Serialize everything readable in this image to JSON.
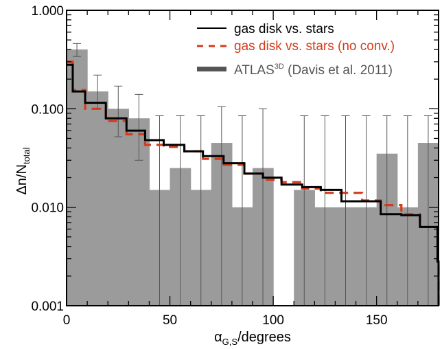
{
  "chart_data": {
    "type": "histogram",
    "xlabel": {
      "main": "α",
      "sub": "G,S",
      "rest": "/degrees"
    },
    "ylabel": {
      "main": "Δn/N",
      "sub": "total"
    },
    "xlim": [
      0,
      180
    ],
    "ylim": [
      0.001,
      1.0
    ],
    "yscale": "log",
    "grid": false,
    "legend_position": "top-right",
    "x_ticks": [
      {
        "value": 0,
        "label": "0"
      },
      {
        "value": 50,
        "label": "50"
      },
      {
        "value": 100,
        "label": "100"
      },
      {
        "value": 150,
        "label": "150"
      }
    ],
    "y_ticks": [
      {
        "value": 0.001,
        "label": "0.001"
      },
      {
        "value": 0.01,
        "label": "0.010"
      },
      {
        "value": 0.1,
        "label": "0.100"
      },
      {
        "value": 1.0,
        "label": "1.000"
      }
    ],
    "bin_edges": [
      0,
      10,
      20,
      30,
      40,
      50,
      60,
      70,
      80,
      90,
      100,
      110,
      120,
      130,
      140,
      150,
      160,
      170,
      180
    ],
    "series": [
      {
        "name": "gas disk vs. stars",
        "style": "step",
        "color": "#000000",
        "dash": "solid",
        "bin_edges": [
          0,
          3,
          9,
          19,
          29,
          38,
          47,
          57,
          66,
          76,
          86,
          95,
          104,
          114,
          123,
          133,
          143,
          152,
          162,
          171,
          179.5,
          180
        ],
        "values": [
          0.28,
          0.15,
          0.115,
          0.08,
          0.06,
          0.048,
          0.043,
          0.037,
          0.033,
          0.028,
          0.022,
          0.02,
          0.017,
          0.016,
          0.015,
          0.0115,
          0.0115,
          0.0085,
          0.0083,
          0.0063,
          0.0028
        ]
      },
      {
        "name": "gas disk vs. stars (no conv.)",
        "style": "step",
        "color": "#d43b1a",
        "dash": "dashed",
        "bin_edges": [
          0,
          3,
          9,
          19,
          29,
          38,
          47,
          57,
          66,
          76,
          86,
          95,
          104,
          114,
          123,
          133,
          143,
          152,
          162,
          171,
          179.5,
          180
        ],
        "values": [
          0.3,
          0.155,
          0.1,
          0.075,
          0.055,
          0.043,
          0.041,
          0.037,
          0.031,
          0.027,
          0.022,
          0.019,
          0.018,
          0.0155,
          0.014,
          0.014,
          0.0117,
          0.0105,
          0.0085,
          0.0063,
          0.0025
        ]
      },
      {
        "name": "ATLAS",
        "name_sup": "3D",
        "name_rest": " (Davis et al. 2011)",
        "style": "bar",
        "color": "#9b9b9b",
        "values": [
          0.4,
          0.15,
          0.1,
          0.08,
          0.015,
          0.025,
          0.015,
          0.045,
          0.01,
          0.025,
          0,
          0.015,
          0.01,
          0.01,
          0.01,
          0.035,
          0.01,
          0.045
        ],
        "error_upper": [
          0.46,
          0.22,
          0.17,
          0.14,
          0.085,
          0.085,
          0.085,
          0.105,
          0.085,
          0.1,
          null,
          0.085,
          0.085,
          0.085,
          0.085,
          0.085,
          0.085,
          0.085
        ],
        "error_lower": [
          0.34,
          0.1,
          0.052,
          0.03,
          0.001,
          0.001,
          0.001,
          0.001,
          0.001,
          0.001,
          null,
          0.001,
          0.001,
          0.001,
          0.001,
          0.001,
          0.001,
          0.001
        ]
      }
    ]
  }
}
